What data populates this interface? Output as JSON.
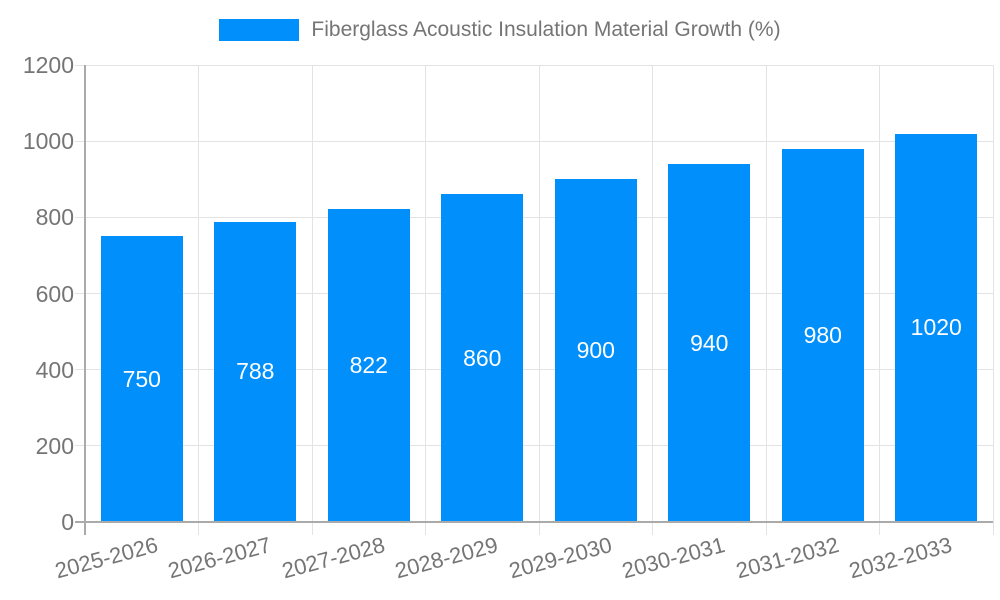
{
  "legend": {
    "label": "Fiberglass Acoustic Insulation Material Growth (%)",
    "swatch_color": "#008FFB"
  },
  "chart_data": {
    "type": "bar",
    "title": "Fiberglass Acoustic Insulation Material Growth (%)",
    "categories": [
      "2025-2026",
      "2026-2027",
      "2027-2028",
      "2028-2029",
      "2029-2030",
      "2030-2031",
      "2031-2032",
      "2032-2033"
    ],
    "values": [
      750,
      788,
      822,
      860,
      900,
      940,
      980,
      1020
    ],
    "xlabel": "",
    "ylabel": "",
    "ylim": [
      0,
      1200
    ],
    "yticks": [
      0,
      200,
      400,
      600,
      800,
      1000,
      1200
    ],
    "grid": true,
    "legend_position": "top-center",
    "value_labels": "inside-center",
    "colors": {
      "bar": "#008FFB",
      "grid_line": "#e3e3e3",
      "axis_line": "#aaaaaa",
      "axis_text": "#757575",
      "bar_label_text": "#ffffff",
      "background": "#ffffff"
    }
  }
}
